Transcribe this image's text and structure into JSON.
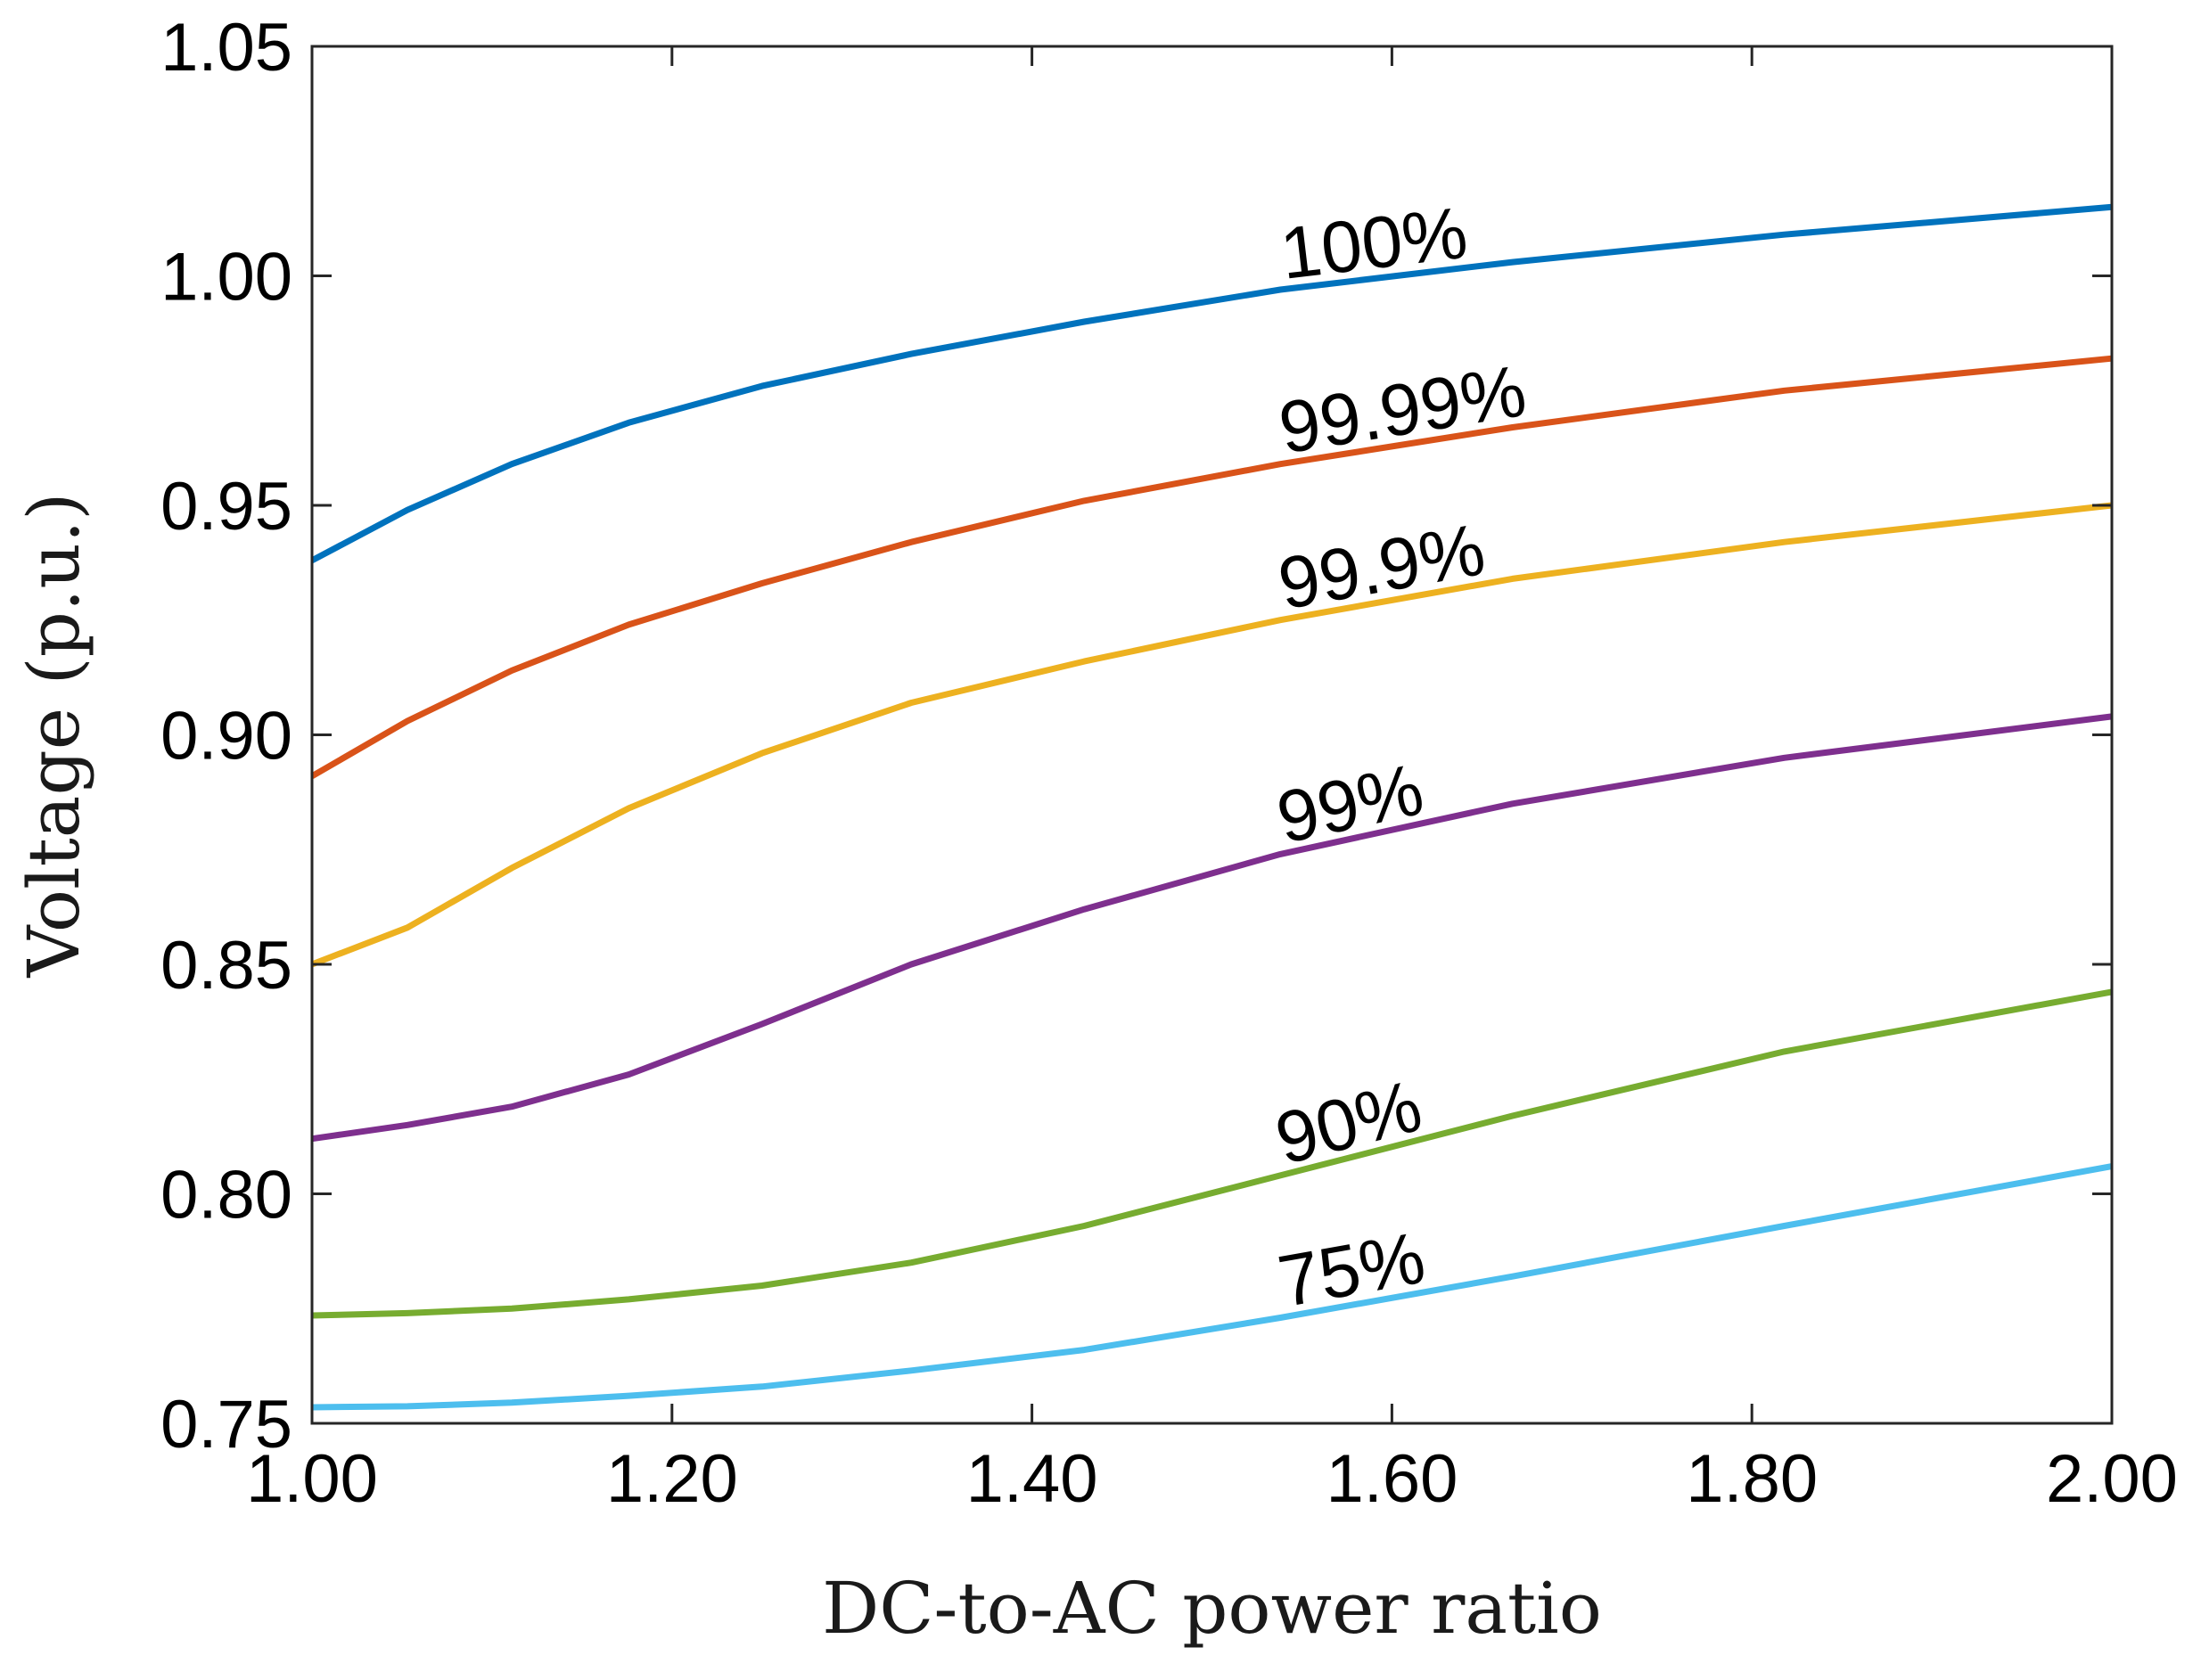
{
  "chart_data": {
    "type": "line",
    "title": "",
    "xlabel": "DC-to-AC power ratio",
    "ylabel": "Voltage (p.u.)",
    "xlim": [
      1.0,
      2.0
    ],
    "ylim": [
      0.75,
      1.05
    ],
    "xticks": [
      1.0,
      1.2,
      1.4,
      1.6,
      1.8,
      2.0
    ],
    "xtick_labels": [
      "1.00",
      "1.20",
      "1.40",
      "1.60",
      "1.80",
      "2.00"
    ],
    "yticks": [
      0.75,
      0.8,
      0.85,
      0.9,
      0.95,
      1.0,
      1.05
    ],
    "ytick_labels": [
      "0.75",
      "0.80",
      "0.85",
      "0.90",
      "0.95",
      "1.00",
      "1.05"
    ],
    "grid": false,
    "legend": "none (inline labels)",
    "series": [
      {
        "name": "100%",
        "color": "#0072BD",
        "x": [
          1.0,
          1.053,
          1.111,
          1.176,
          1.25,
          1.333,
          1.429,
          1.538,
          1.667,
          1.818,
          2.0
        ],
        "values": [
          0.938,
          0.949,
          0.959,
          0.968,
          0.976,
          0.983,
          0.99,
          0.997,
          1.003,
          1.009,
          1.015
        ]
      },
      {
        "name": "99.99%",
        "color": "#D95319",
        "x": [
          1.0,
          1.053,
          1.111,
          1.176,
          1.25,
          1.333,
          1.429,
          1.538,
          1.667,
          1.818,
          2.0
        ],
        "values": [
          0.891,
          0.903,
          0.914,
          0.924,
          0.933,
          0.942,
          0.951,
          0.959,
          0.967,
          0.975,
          0.982
        ]
      },
      {
        "name": "99.9%",
        "color": "#EDB120",
        "x": [
          1.0,
          1.053,
          1.111,
          1.176,
          1.25,
          1.333,
          1.429,
          1.538,
          1.667,
          1.818,
          2.0
        ],
        "values": [
          0.85,
          0.858,
          0.871,
          0.884,
          0.896,
          0.907,
          0.916,
          0.925,
          0.934,
          0.942,
          0.95
        ]
      },
      {
        "name": "99%",
        "color": "#7E2F8E",
        "x": [
          1.0,
          1.053,
          1.111,
          1.176,
          1.25,
          1.333,
          1.429,
          1.538,
          1.667,
          1.818,
          2.0
        ],
        "values": [
          0.812,
          0.815,
          0.819,
          0.826,
          0.837,
          0.85,
          0.862,
          0.874,
          0.885,
          0.895,
          0.904
        ]
      },
      {
        "name": "90%",
        "color": "#77AC30",
        "x": [
          1.0,
          1.053,
          1.111,
          1.176,
          1.25,
          1.333,
          1.429,
          1.538,
          1.667,
          1.818,
          2.0
        ],
        "values": [
          0.7735,
          0.774,
          0.775,
          0.777,
          0.78,
          0.785,
          0.793,
          0.804,
          0.817,
          0.831,
          0.844
        ]
      },
      {
        "name": "75%",
        "color": "#4DBEEE",
        "x": [
          1.0,
          1.053,
          1.111,
          1.176,
          1.25,
          1.333,
          1.429,
          1.538,
          1.667,
          1.818,
          2.0
        ],
        "values": [
          0.7535,
          0.7537,
          0.7545,
          0.756,
          0.758,
          0.7615,
          0.766,
          0.773,
          0.782,
          0.793,
          0.806
        ]
      }
    ],
    "annotations": [
      {
        "text": "100%",
        "series": "100%",
        "x": 1.54,
        "y": 0.997
      },
      {
        "text": "99.99%",
        "series": "99.99%",
        "x": 1.54,
        "y": 0.959
      },
      {
        "text": "99.9%",
        "series": "99.9%",
        "x": 1.54,
        "y": 0.925
      },
      {
        "text": "99%",
        "series": "99%",
        "x": 1.54,
        "y": 0.874
      },
      {
        "text": "90%",
        "series": "90%",
        "x": 1.54,
        "y": 0.804
      },
      {
        "text": "75%",
        "series": "75%",
        "x": 1.54,
        "y": 0.773
      }
    ]
  }
}
